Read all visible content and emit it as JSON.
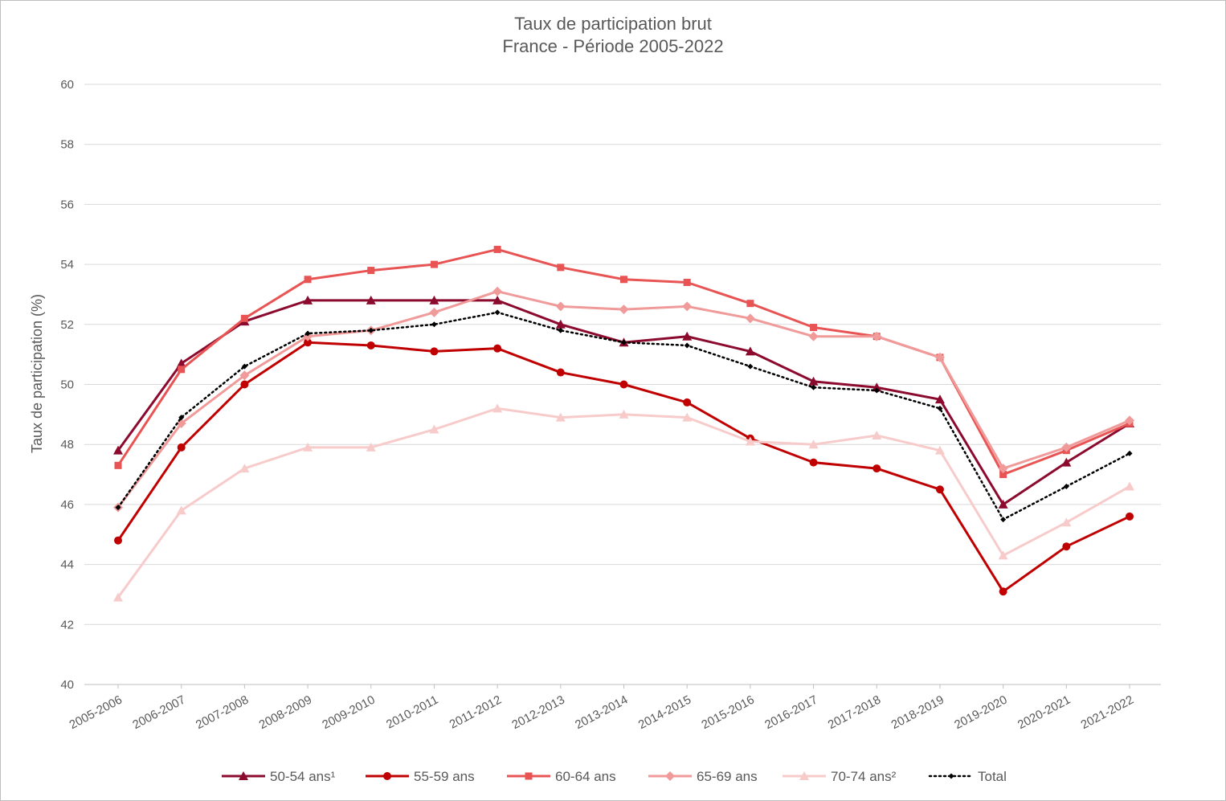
{
  "chart_data": {
    "type": "line",
    "title": "Taux de participation brut",
    "subtitle": "France - Période 2005-2022",
    "xlabel": "",
    "ylabel": "Taux de participation (%)",
    "ylim": [
      40,
      60
    ],
    "yticks": [
      40,
      42,
      44,
      46,
      48,
      50,
      52,
      54,
      56,
      58,
      60
    ],
    "grid": true,
    "legend_position": "bottom",
    "categories": [
      "2005-2006",
      "2006-2007",
      "2007-2008",
      "2008-2009",
      "2009-2010",
      "2010-2011",
      "2011-2012",
      "2012-2013",
      "2013-2014",
      "2014-2015",
      "2015-2016",
      "2016-2017",
      "2017-2018",
      "2018-2019",
      "2019-2020",
      "2020-2021",
      "2021-2022"
    ],
    "series": [
      {
        "name": "50-54 ans¹",
        "color": "#8b0a2e",
        "marker": "triangle",
        "dash": "solid",
        "values": [
          47.8,
          50.7,
          52.1,
          52.8,
          52.8,
          52.8,
          52.8,
          52.0,
          51.4,
          51.6,
          51.1,
          50.1,
          49.9,
          49.5,
          46.0,
          47.4,
          48.7
        ]
      },
      {
        "name": "55-59 ans",
        "color": "#c00000",
        "marker": "circle",
        "dash": "solid",
        "values": [
          44.8,
          47.9,
          50.0,
          51.4,
          51.3,
          51.1,
          51.2,
          50.4,
          50.0,
          49.4,
          48.2,
          47.4,
          47.2,
          46.5,
          43.1,
          44.6,
          45.6
        ]
      },
      {
        "name": "60-64 ans",
        "color": "#e85454",
        "marker": "square",
        "dash": "solid",
        "values": [
          47.3,
          50.5,
          52.2,
          53.5,
          53.8,
          54.0,
          54.5,
          53.9,
          53.5,
          53.4,
          52.7,
          51.9,
          51.6,
          50.9,
          47.0,
          47.8,
          48.7
        ]
      },
      {
        "name": "65-69 ans",
        "color": "#f09a9a",
        "marker": "diamond",
        "dash": "solid",
        "values": [
          45.9,
          48.7,
          50.3,
          51.6,
          51.8,
          52.4,
          53.1,
          52.6,
          52.5,
          52.6,
          52.2,
          51.6,
          51.6,
          50.9,
          47.2,
          47.9,
          48.8
        ]
      },
      {
        "name": "70-74 ans²",
        "color": "#f8cbcb",
        "marker": "triangle",
        "dash": "solid",
        "values": [
          42.9,
          45.8,
          47.2,
          47.9,
          47.9,
          48.5,
          49.2,
          48.9,
          49.0,
          48.9,
          48.1,
          48.0,
          48.3,
          47.8,
          44.3,
          45.4,
          46.6
        ]
      },
      {
        "name": "Total",
        "color": "#000000",
        "marker": "diamond-small",
        "dash": "dotted",
        "values": [
          45.9,
          48.9,
          50.6,
          51.7,
          51.8,
          52.0,
          52.4,
          51.8,
          51.4,
          51.3,
          50.6,
          49.9,
          49.8,
          49.2,
          45.5,
          46.6,
          47.7
        ]
      }
    ]
  }
}
